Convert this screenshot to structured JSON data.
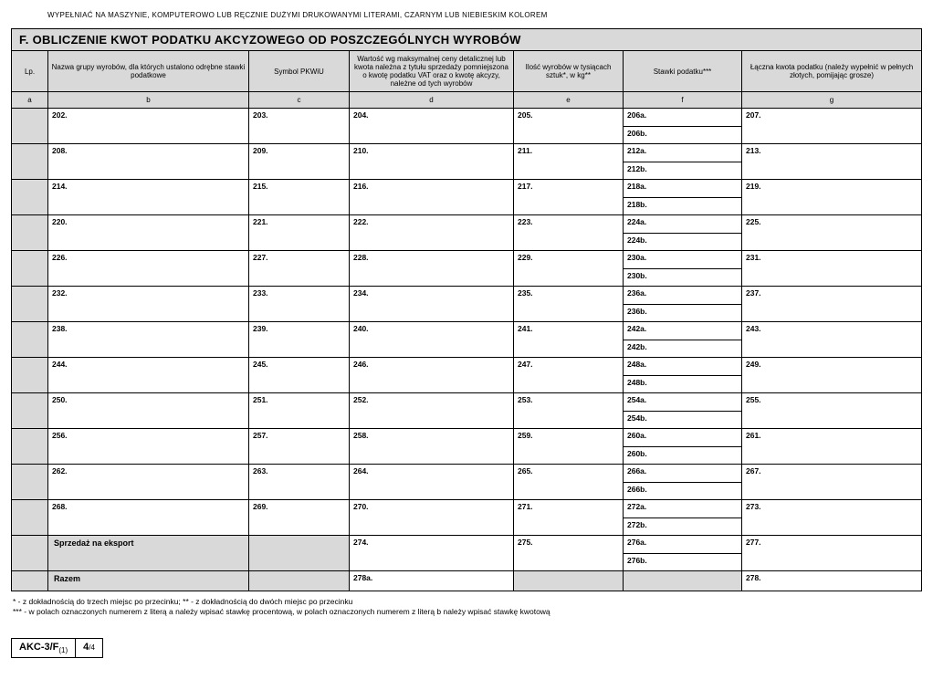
{
  "top_note": "WYPEŁNIAĆ NA MASZYNIE, KOMPUTEROWO LUB RĘCZNIE DUŻYMI DRUKOWANYMI LITERAMI, CZARNYM LUB NIEBIESKIM KOLOREM",
  "section_title": "F. OBLICZENIE KWOT PODATKU AKCYZOWEGO OD POSZCZEGÓLNYCH WYROBÓW",
  "headers": {
    "lp": "Lp.",
    "b": "Nazwa grupy wyrobów, dla których ustalono odrębne stawki podatkowe",
    "c": "Symbol PKWiU",
    "d": "Wartość wg maksymalnej ceny detalicznej lub kwota należna z tytułu sprzedaży pomniejszona o kwotę podatku VAT oraz o kwotę akcyzy, należne od tych wyrobów",
    "e": "Ilość wyrobów w tysiącach sztuk*, w kg**",
    "f": "Stawki podatku***",
    "g": "Łączna kwota podatku (należy wypełnić w pełnych złotych, pomijając grosze)"
  },
  "col_letters": {
    "a": "a",
    "b": "b",
    "c": "c",
    "d": "d",
    "e": "e",
    "f": "f",
    "g": "g"
  },
  "col_widths": {
    "a": 40,
    "b": 220,
    "c": 110,
    "d": 180,
    "e": 120,
    "f": 130,
    "g": 170
  },
  "rows": [
    {
      "b": "202.",
      "c": "203.",
      "d": "204.",
      "e": "205.",
      "fa": "206a.",
      "fb": "206b.",
      "g": "207."
    },
    {
      "b": "208.",
      "c": "209.",
      "d": "210.",
      "e": "211.",
      "fa": "212a.",
      "fb": "212b.",
      "g": "213."
    },
    {
      "b": "214.",
      "c": "215.",
      "d": "216.",
      "e": "217.",
      "fa": "218a.",
      "fb": "218b.",
      "g": "219."
    },
    {
      "b": "220.",
      "c": "221.",
      "d": "222.",
      "e": "223.",
      "fa": "224a.",
      "fb": "224b.",
      "g": "225."
    },
    {
      "b": "226.",
      "c": "227.",
      "d": "228.",
      "e": "229.",
      "fa": "230a.",
      "fb": "230b.",
      "g": "231."
    },
    {
      "b": "232.",
      "c": "233.",
      "d": "234.",
      "e": "235.",
      "fa": "236a.",
      "fb": "236b.",
      "g": "237."
    },
    {
      "b": "238.",
      "c": "239.",
      "d": "240.",
      "e": "241.",
      "fa": "242a.",
      "fb": "242b.",
      "g": "243."
    },
    {
      "b": "244.",
      "c": "245.",
      "d": "246.",
      "e": "247.",
      "fa": "248a.",
      "fb": "248b.",
      "g": "249."
    },
    {
      "b": "250.",
      "c": "251.",
      "d": "252.",
      "e": "253.",
      "fa": "254a.",
      "fb": "254b.",
      "g": "255."
    },
    {
      "b": "256.",
      "c": "257.",
      "d": "258.",
      "e": "259.",
      "fa": "260a.",
      "fb": "260b.",
      "g": "261."
    },
    {
      "b": "262.",
      "c": "263.",
      "d": "264.",
      "e": "265.",
      "fa": "266a.",
      "fb": "266b.",
      "g": "267."
    },
    {
      "b": "268.",
      "c": "269.",
      "d": "270.",
      "e": "271.",
      "fa": "272a.",
      "fb": "272b.",
      "g": "273."
    }
  ],
  "export_row": {
    "label": "Sprzedaż na eksport",
    "d": "274.",
    "e": "275.",
    "fa": "276a.",
    "fb": "276b.",
    "g": "277."
  },
  "total_row": {
    "label": "Razem",
    "d": "278a.",
    "g": "278."
  },
  "footnotes": {
    "line1": "* - z dokładnością do trzech miejsc po przecinku;  ** - z dokładnością do dwóch miejsc po przecinku",
    "line2": "*** - w polach oznaczonych numerem z literą a należy wpisać stawkę procentową, w polach oznaczonych numerem z literą b należy wpisać stawkę kwotową"
  },
  "footer": {
    "form": "AKC-3/F",
    "version": "(1)",
    "page_num": "4",
    "page_total": "/4"
  }
}
